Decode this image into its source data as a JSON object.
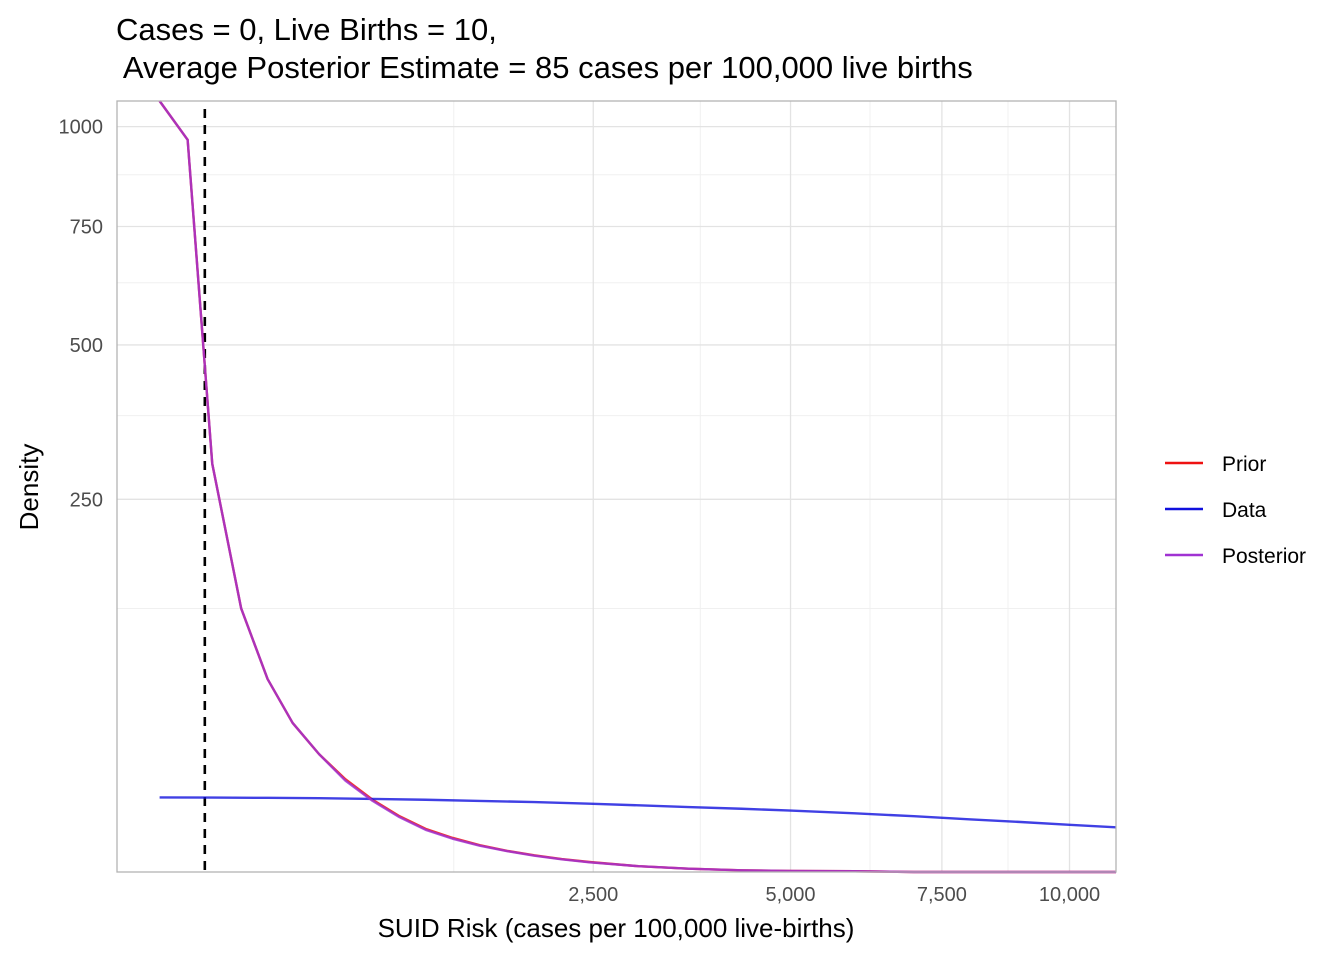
{
  "chart_data": {
    "type": "line",
    "title": "Cases = 0, Live Births = 10,",
    "subtitle": " Average Posterior Estimate = 85 cases per 100,000 live births",
    "xlabel": "SUID Risk (cases per 100,000 live-births)",
    "ylabel": "Density",
    "x_scale": "sqrt",
    "y_scale": "sqrt",
    "xlim": [
      0,
      11000
    ],
    "ylim": [
      0,
      1070
    ],
    "x_ticks": [
      2500,
      5000,
      7500,
      10000
    ],
    "x_tick_labels": [
      "2,500",
      "5,000",
      "7,500",
      "10,000"
    ],
    "y_ticks": [
      250,
      500,
      750,
      1000
    ],
    "y_tick_labels": [
      "250",
      "500",
      "750",
      "1000"
    ],
    "grid": true,
    "legend_position": "right",
    "reference_line": {
      "x": 85,
      "style": "dashed",
      "color": "#000000"
    },
    "series": [
      {
        "name": "Prior",
        "color": "#ee1111",
        "x": [
          20,
          55,
          100,
          170,
          250,
          340,
          450,
          575,
          720,
          880,
          1050,
          1240,
          1450,
          1680,
          1920,
          2180,
          2460,
          3000,
          3600,
          4300,
          5000,
          6000,
          7000,
          8000,
          9000,
          10000,
          11000
        ],
        "y": [
          1080,
          965,
          300,
          125,
          67,
          40,
          25,
          15.5,
          9.4,
          5.6,
          3.35,
          2.1,
          1.3,
          0.8,
          0.5,
          0.3,
          0.18,
          0.06,
          0.02,
          0.005,
          0.002,
          0.001,
          0,
          0,
          0,
          0,
          0
        ]
      },
      {
        "name": "Data",
        "color": "#1010dd",
        "x": [
          20,
          100,
          250,
          450,
          720,
          1050,
          1450,
          1920,
          2460,
          3000,
          3600,
          4300,
          5000,
          6000,
          7000,
          8000,
          9000,
          10000,
          11000
        ],
        "y": [
          10,
          9.98,
          9.9,
          9.8,
          9.6,
          9.4,
          9.1,
          8.8,
          8.4,
          8.0,
          7.6,
          7.2,
          6.8,
          6.2,
          5.6,
          5.0,
          4.5,
          4.0,
          3.6
        ]
      },
      {
        "name": "Posterior",
        "color": "#a032d2",
        "x": [
          20,
          55,
          100,
          170,
          250,
          340,
          450,
          575,
          720,
          880,
          1050,
          1240,
          1450,
          1680,
          1920,
          2180,
          2460,
          3000,
          3600,
          4300,
          5000,
          6000,
          7000,
          8000,
          9000,
          10000,
          11000
        ],
        "y": [
          1080,
          965,
          300,
          125,
          67,
          40,
          25,
          15,
          9.1,
          5.4,
          3.2,
          2.0,
          1.25,
          0.78,
          0.48,
          0.29,
          0.17,
          0.06,
          0.02,
          0.005,
          0.002,
          0.001,
          0,
          0,
          0,
          0,
          0
        ]
      }
    ]
  }
}
